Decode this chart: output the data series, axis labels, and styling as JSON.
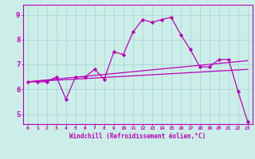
{
  "title": "",
  "xlabel": "Windchill (Refroidissement éolien,°C)",
  "ylabel": "",
  "background_color": "#cceee8",
  "grid_color": "#aad8d8",
  "line_color": "#bb00bb",
  "spine_color": "#bb00bb",
  "xlim": [
    -0.5,
    23.5
  ],
  "ylim": [
    4.6,
    9.4
  ],
  "yticks": [
    5,
    6,
    7,
    8,
    9
  ],
  "xticks": [
    0,
    1,
    2,
    3,
    4,
    5,
    6,
    7,
    8,
    9,
    10,
    11,
    12,
    13,
    14,
    15,
    16,
    17,
    18,
    19,
    20,
    21,
    22,
    23
  ],
  "series": [
    {
      "x": [
        0,
        1,
        2,
        3,
        4,
        5,
        6,
        7,
        8,
        9,
        10,
        11,
        12,
        13,
        14,
        15,
        16,
        17,
        18,
        19,
        20,
        21,
        22,
        23
      ],
      "y": [
        6.3,
        6.3,
        6.3,
        6.5,
        5.6,
        6.5,
        6.5,
        6.8,
        6.4,
        7.5,
        7.4,
        8.3,
        8.8,
        8.7,
        8.8,
        8.9,
        8.2,
        7.6,
        6.9,
        6.9,
        7.2,
        7.2,
        5.9,
        4.7
      ],
      "color": "#bb00bb",
      "marker": "D",
      "markersize": 2.2,
      "linewidth": 0.9
    },
    {
      "x": [
        0,
        23
      ],
      "y": [
        6.3,
        6.8
      ],
      "color": "#bb00bb",
      "marker": null,
      "linewidth": 0.9
    },
    {
      "x": [
        0,
        23
      ],
      "y": [
        6.3,
        7.15
      ],
      "color": "#bb00bb",
      "marker": null,
      "linewidth": 0.9
    }
  ]
}
